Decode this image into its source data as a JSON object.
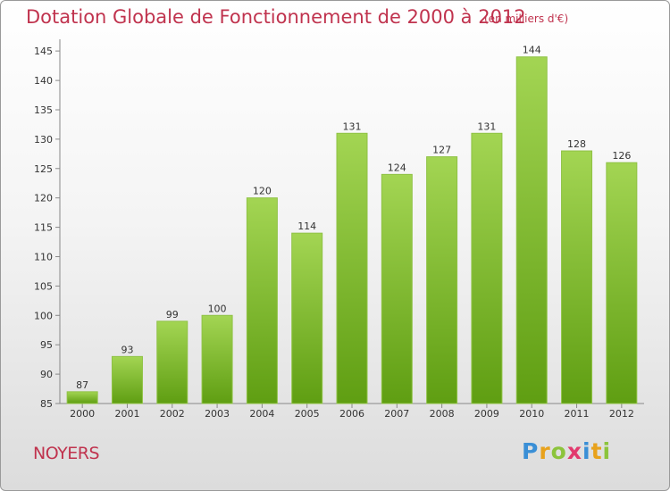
{
  "chart_data": {
    "type": "bar",
    "title": "Dotation Globale de Fonctionnement de 2000 à 2012",
    "subtitle": "(en milliers d'€)",
    "categories": [
      "2000",
      "2001",
      "2002",
      "2003",
      "2004",
      "2005",
      "2006",
      "2007",
      "2008",
      "2009",
      "2010",
      "2011",
      "2012"
    ],
    "values": [
      87,
      93,
      99,
      100,
      120,
      114,
      131,
      124,
      127,
      131,
      144,
      128,
      126
    ],
    "data_labels": [
      "87",
      "93",
      "99",
      "100",
      "120",
      "114",
      "131",
      "124",
      "127",
      "131",
      "144",
      "128",
      "126"
    ],
    "ylim": [
      85,
      147
    ],
    "yticks": [
      85,
      90,
      95,
      100,
      105,
      110,
      115,
      120,
      125,
      130,
      135,
      140,
      145
    ],
    "xlabel": "",
    "ylabel": "",
    "grid": false,
    "legend": "none",
    "colors": {
      "bar_light": "#9ed14f",
      "bar_dark": "#5f9e12",
      "title": "#c0334e",
      "axis": "#888888"
    }
  },
  "footer": {
    "commune": "NOYERS",
    "logo_text": "Proxiti"
  }
}
